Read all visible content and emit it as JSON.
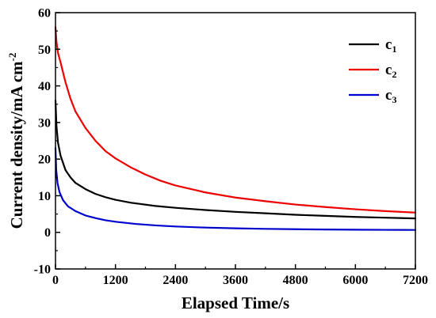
{
  "chart_data": {
    "type": "line",
    "xlabel": "Elapsed Time/s",
    "ylabel": "Current density/mA cm",
    "ylabel_superscript": "-2",
    "xlim": [
      0,
      7200
    ],
    "ylim": [
      -10,
      60
    ],
    "xticks": [
      0,
      1200,
      2400,
      3600,
      4800,
      6000,
      7200
    ],
    "yticks": [
      -10,
      0,
      10,
      20,
      30,
      40,
      50,
      60
    ],
    "grid": false,
    "legend_position": "top-right",
    "series": [
      {
        "name": "c",
        "subscript": "1",
        "color": "#000000",
        "x": [
          0,
          20,
          50,
          100,
          200,
          300,
          400,
          600,
          800,
          1000,
          1200,
          1500,
          2000,
          2400,
          3000,
          3600,
          4200,
          4800,
          5400,
          6000,
          6600,
          7200
        ],
        "y": [
          36,
          29,
          24.5,
          21,
          17,
          15,
          13.5,
          11.8,
          10.5,
          9.6,
          8.9,
          8.1,
          7.2,
          6.7,
          6.1,
          5.6,
          5.2,
          4.8,
          4.5,
          4.2,
          4.0,
          3.8
        ]
      },
      {
        "name": "c",
        "subscript": "2",
        "color": "#ee0000",
        "x": [
          0,
          20,
          50,
          100,
          200,
          300,
          400,
          600,
          800,
          1000,
          1200,
          1500,
          1800,
          2100,
          2400,
          3000,
          3600,
          4200,
          4800,
          5400,
          6000,
          6600,
          7200
        ],
        "y": [
          56,
          52,
          49,
          46.5,
          41,
          36.5,
          33,
          28.5,
          25,
          22.2,
          20.2,
          17.8,
          15.8,
          14.1,
          12.8,
          10.9,
          9.5,
          8.5,
          7.6,
          6.9,
          6.3,
          5.8,
          5.4
        ]
      },
      {
        "name": "c",
        "subscript": "3",
        "color": "#0000cc",
        "x": [
          0,
          15,
          40,
          80,
          150,
          250,
          400,
          600,
          800,
          1000,
          1200,
          1600,
          2000,
          2400,
          3000,
          3600,
          4200,
          4800,
          5400,
          6000,
          6600,
          7200
        ],
        "y": [
          23,
          17,
          13.5,
          11,
          8.8,
          7.1,
          5.8,
          4.6,
          3.9,
          3.3,
          2.9,
          2.3,
          1.9,
          1.6,
          1.3,
          1.1,
          0.95,
          0.85,
          0.78,
          0.72,
          0.68,
          0.65
        ]
      }
    ]
  }
}
